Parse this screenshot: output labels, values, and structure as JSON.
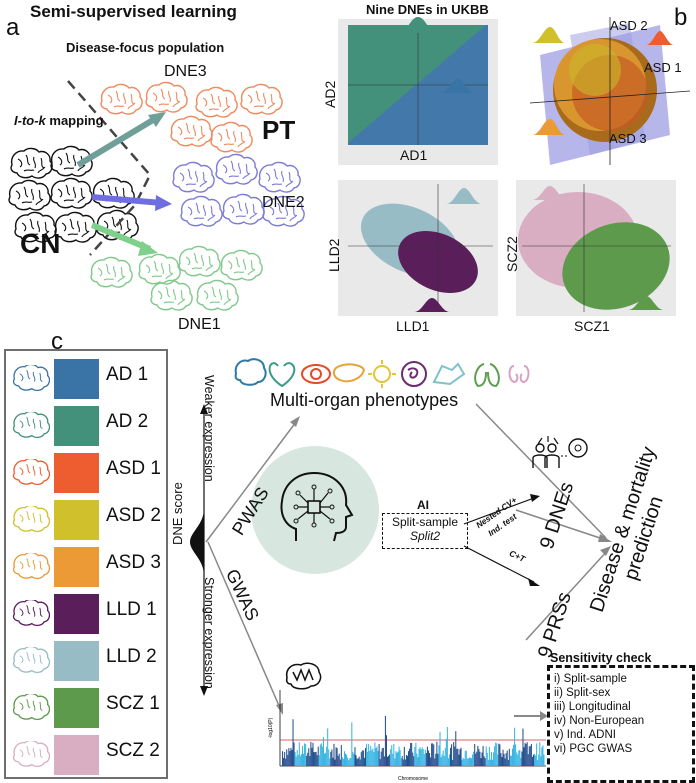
{
  "panel_a": {
    "letter": "a",
    "title": "Semi-supervised learning",
    "subtitle": "Disease-focus population",
    "mapping_label_italic": "I-to-k",
    "mapping_label_rest": " mapping",
    "cn_label": "CN",
    "pt_label": "PT",
    "dne_labels": [
      "DNE3",
      "DNE2",
      "DNE1"
    ]
  },
  "panel_b": {
    "letter": "b",
    "title": "Nine DNEs in UKBB",
    "ad": {
      "xlabel": "AD1",
      "ylabel": "AD2"
    },
    "asd": {
      "labels": [
        "ASD 2",
        "ASD 1",
        "ASD 3"
      ]
    },
    "lld": {
      "xlabel": "LLD1",
      "ylabel": "LLD2"
    },
    "scz": {
      "xlabel": "SCZ1",
      "ylabel": "SCZ2"
    }
  },
  "panel_c": {
    "letter": "c",
    "legend": [
      {
        "label": "AD 1",
        "color": "#3a73a6"
      },
      {
        "label": "AD 2",
        "color": "#43917a"
      },
      {
        "label": "ASD 1",
        "color": "#ee5d2f"
      },
      {
        "label": "ASD 2",
        "color": "#d0c12c"
      },
      {
        "label": "ASD 3",
        "color": "#eb9a35"
      },
      {
        "label": "LLD 1",
        "color": "#5a1f5a"
      },
      {
        "label": "LLD 2",
        "color": "#98bcc6"
      },
      {
        "label": "SCZ 1",
        "color": "#5d9a4c"
      },
      {
        "label": "SCZ 2",
        "color": "#d9adc2"
      }
    ],
    "dne_score": "DNE score",
    "weaker": "Weaker expression",
    "stronger": "Stronger expression",
    "multi_organ": "Multi-organ phenotypes",
    "pwas": "PWAS",
    "gwas": "GWAS",
    "ai": "AI",
    "split_sample": "Split-sample",
    "split2": "Split2",
    "nested_cv": "Nested CV+",
    "ind_test": "Ind. test",
    "ct": "C+T",
    "nine_dnes": "9 DNEs",
    "nine_prss": "9 PRSs",
    "disease_pred_line1": "Disease & mortality",
    "disease_pred_line2": "prediction",
    "sensitivity_title": "Sensitivity check",
    "sensitivity_items": [
      "i) Split-sample",
      "ii) Split-sex",
      "iii) Longitudinal",
      "iv) Non-European",
      "v) Ind. ADNI",
      "vi) PGC GWAS"
    ],
    "manhattan_xlabel": "Chromosome",
    "manhattan_ylabel": "-log10(P)",
    "organ_colors": [
      "#2f79a5",
      "#3b9a87",
      "#e8472a",
      "#e5a33a",
      "#e6c338",
      "#6b2c70",
      "#7fc2c9",
      "#5e9e50",
      "#d7a1c4"
    ]
  }
}
